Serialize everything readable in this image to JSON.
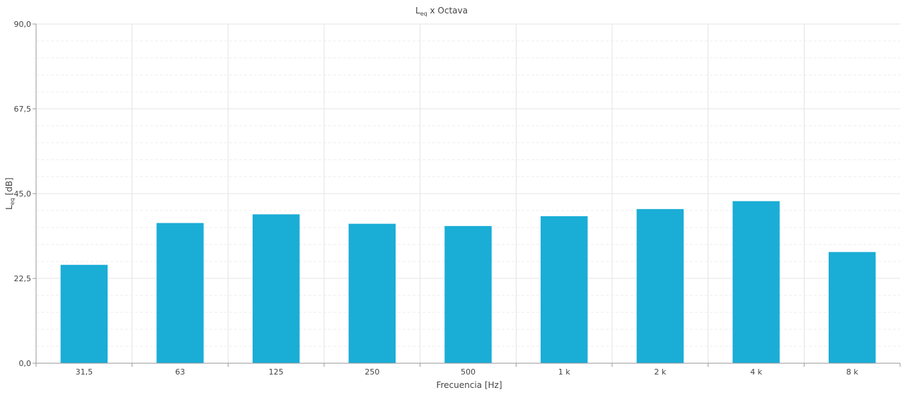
{
  "chart_data": {
    "type": "bar",
    "title": {
      "main": "L",
      "sub": "eq",
      "rest": " x Octava"
    },
    "xlabel": "Frecuencia [Hz]",
    "ylabel": {
      "main": "L",
      "sub": "eq",
      "rest": " [dB]"
    },
    "categories": [
      "31,5",
      "63",
      "125",
      "250",
      "500",
      "1 k",
      "2 k",
      "4 k",
      "8 k"
    ],
    "values": [
      26.1,
      37.2,
      39.5,
      37.0,
      36.4,
      39.0,
      40.9,
      43.0,
      29.5
    ],
    "ylim": [
      0,
      90
    ],
    "y_ticks": [
      {
        "value": 0,
        "label": "0,0"
      },
      {
        "value": 22.5,
        "label": "22,5"
      },
      {
        "value": 45,
        "label": "45,0"
      },
      {
        "value": 67.5,
        "label": "67,5"
      },
      {
        "value": 90,
        "label": "90,0"
      }
    ],
    "minor_gridlines_per_major": 5,
    "grid": true,
    "colors": {
      "bar": "#1aadd6",
      "grid_major": "#e4e4e4",
      "grid_minor": "#ececec",
      "axis": "#9a9a9a"
    }
  }
}
